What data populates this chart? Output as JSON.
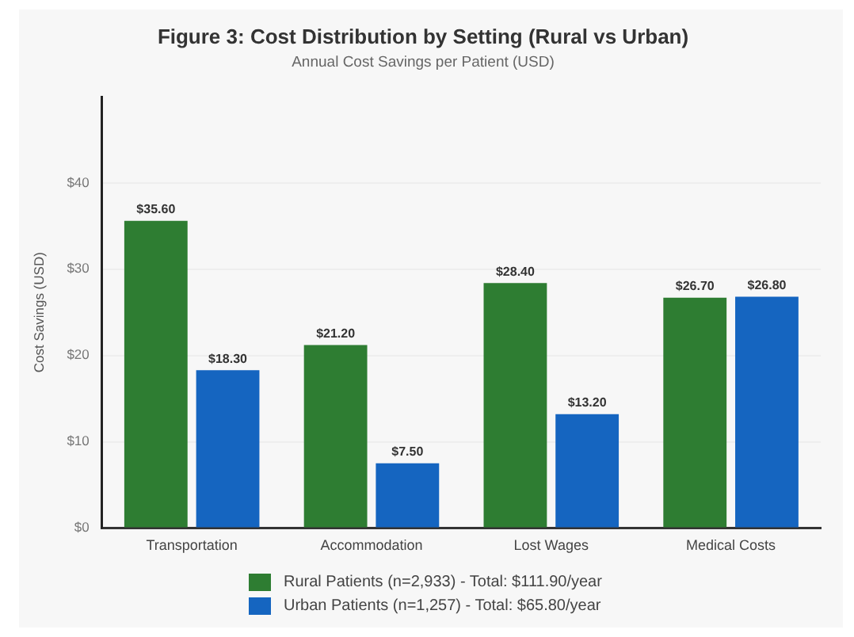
{
  "chart_data": {
    "type": "bar",
    "title": "Figure 3: Cost Distribution by Setting (Rural vs Urban)",
    "subtitle": "Annual Cost Savings per Patient (USD)",
    "ylabel": "Cost Savings (USD)",
    "categories": [
      "Transportation",
      "Accommodation",
      "Lost Wages",
      "Medical Costs"
    ],
    "series": [
      {
        "name": "Rural Patients (n=2,933) - Total: $111.90/year",
        "color": "#2e7d32",
        "values": [
          35.6,
          21.2,
          28.4,
          26.7
        ],
        "value_labels": [
          "$35.60",
          "$21.20",
          "$28.40",
          "$26.70"
        ]
      },
      {
        "name": "Urban Patients (n=1,257) - Total: $65.80/year",
        "color": "#1565c0",
        "values": [
          18.3,
          7.5,
          13.2,
          26.8
        ],
        "value_labels": [
          "$18.30",
          "$7.50",
          "$13.20",
          "$26.80"
        ]
      }
    ],
    "ylim": [
      0,
      50
    ],
    "yticks": [
      {
        "value": 0,
        "label": "$0"
      },
      {
        "value": 10,
        "label": "$10"
      },
      {
        "value": 20,
        "label": "$20"
      },
      {
        "value": 30,
        "label": "$30"
      },
      {
        "value": 40,
        "label": "$40"
      }
    ],
    "grid": "y",
    "legend": "bottom"
  }
}
